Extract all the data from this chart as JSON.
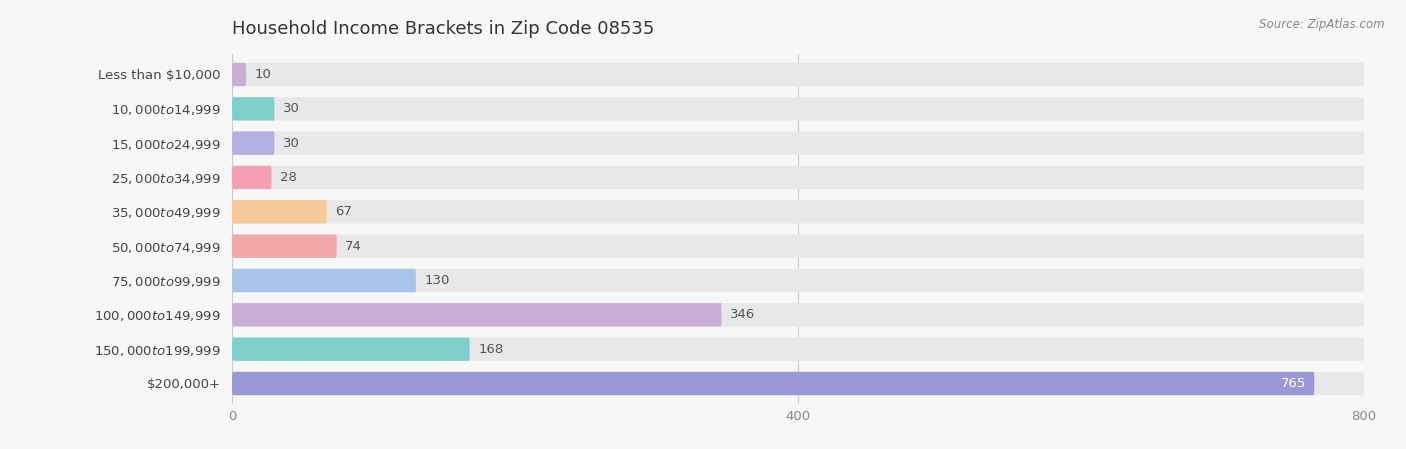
{
  "title": "Household Income Brackets in Zip Code 08535",
  "source": "Source: ZipAtlas.com",
  "categories": [
    "Less than $10,000",
    "$10,000 to $14,999",
    "$15,000 to $24,999",
    "$25,000 to $34,999",
    "$35,000 to $49,999",
    "$50,000 to $74,999",
    "$75,000 to $99,999",
    "$100,000 to $149,999",
    "$150,000 to $199,999",
    "$200,000+"
  ],
  "values": [
    10,
    30,
    30,
    28,
    67,
    74,
    130,
    346,
    168,
    765
  ],
  "bar_colors": [
    "#c9aed6",
    "#7ececa",
    "#b3b0e0",
    "#f4a0b0",
    "#f7c99a",
    "#f0a8a8",
    "#a8c4e8",
    "#c9aed6",
    "#7ececa",
    "#9898d8"
  ],
  "background_color": "#f7f7f7",
  "bar_background_color": "#e8e8e8",
  "xlim": [
    0,
    800
  ],
  "xticks": [
    0,
    400,
    800
  ],
  "title_fontsize": 13,
  "label_fontsize": 9.5,
  "value_fontsize": 9.5
}
